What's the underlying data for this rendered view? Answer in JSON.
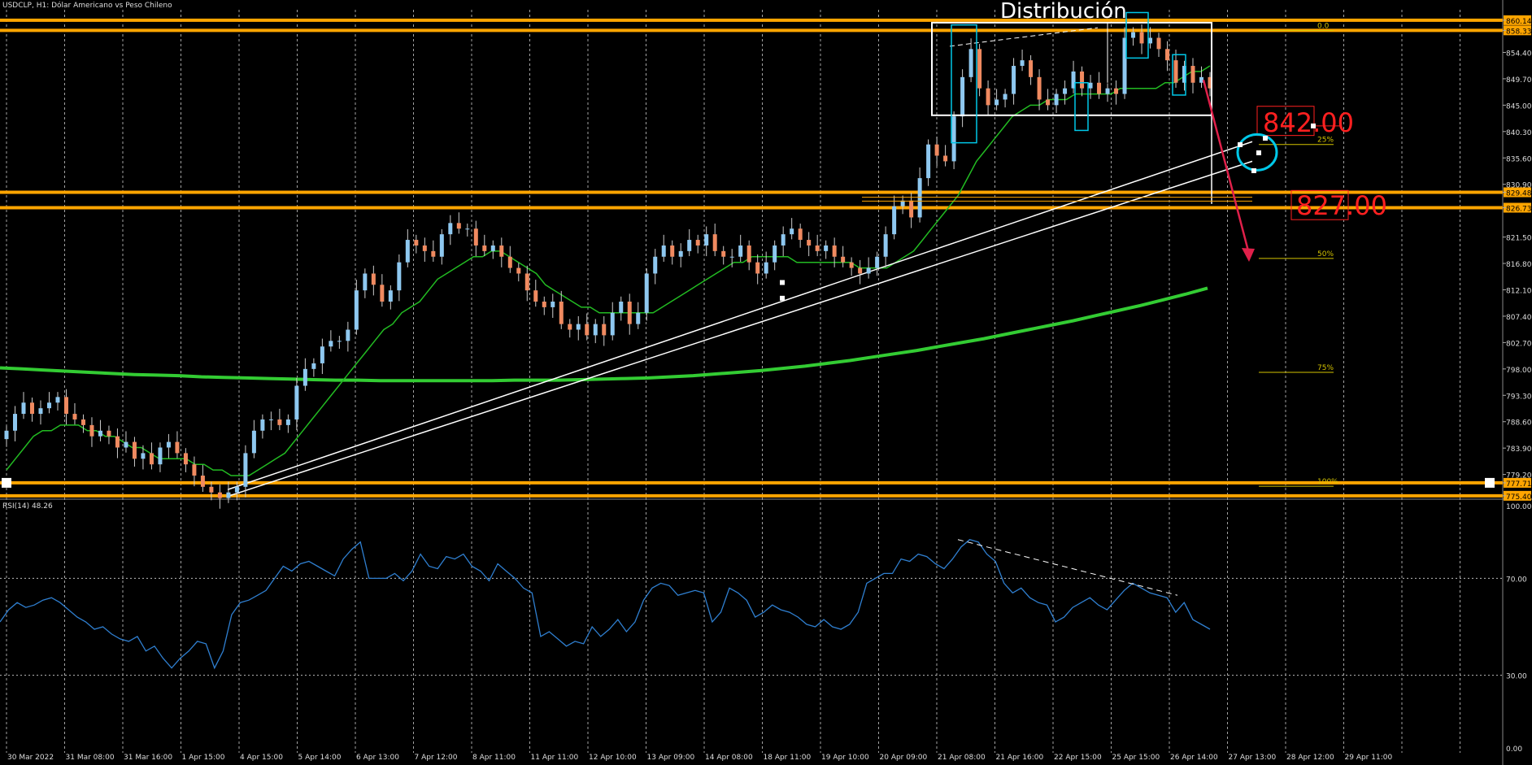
{
  "header": {
    "symbol": "USDCLP",
    "timeframe": "H1",
    "description": "Dólar Americano vs Peso Chileno"
  },
  "colors": {
    "background": "#000000",
    "grid": "#d8d8d8",
    "up_candle": "#8ec8f0",
    "down_candle": "#f08a60",
    "ma_fast": "#22bb22",
    "ma_slow": "#33cc33",
    "levels": "#ffa500",
    "fib": "#d4c300",
    "rsi": "#2f7fd0",
    "arrow": "#e0204a",
    "box": "#ffffff",
    "accent": "#00c8e8",
    "label_red": "#ff2020"
  },
  "chart_data": [
    {
      "type": "candlestick",
      "title": "USDCLP, H1",
      "ylim": [
        774.8,
        862.0
      ],
      "price_ticks": [
        "860.14",
        "858.33",
        "854.40",
        "849.70",
        "845.00",
        "840.30",
        "835.60",
        "830.90",
        "829.48",
        "826.73",
        "821.50",
        "816.80",
        "812.10",
        "807.40",
        "802.70",
        "798.00",
        "793.30",
        "788.60",
        "783.90",
        "779.20",
        "777.71",
        "775.40"
      ],
      "highlighted_ticks": [
        "860.14",
        "858.33",
        "829.48",
        "826.73",
        "777.71",
        "775.40"
      ],
      "x_labels": [
        "30 Mar 2022",
        "31 Mar 08:00",
        "31 Mar 16:00",
        "1 Apr 15:00",
        "4 Apr 15:00",
        "5 Apr 14:00",
        "6 Apr 13:00",
        "7 Apr 12:00",
        "8 Apr 11:00",
        "11 Apr 11:00",
        "12 Apr 10:00",
        "13 Apr 09:00",
        "14 Apr 08:00",
        "18 Apr 11:00",
        "19 Apr 10:00",
        "20 Apr 09:00",
        "21 Apr 08:00",
        "21 Apr 16:00",
        "22 Apr 15:00",
        "25 Apr 15:00",
        "26 Apr 14:00",
        "27 Apr 13:00",
        "28 Apr 12:00",
        "29 Apr 11:00"
      ],
      "horizontal_levels": [
        860.14,
        858.33,
        829.48,
        826.73,
        777.71,
        775.4
      ],
      "price_closes": [
        787,
        790,
        792,
        790,
        791,
        792,
        793,
        790,
        789,
        788,
        786,
        787,
        786,
        784,
        785,
        782,
        783,
        781,
        784,
        785,
        783,
        781,
        779,
        777,
        776,
        775,
        776,
        777,
        783,
        787,
        789,
        789,
        788,
        789,
        795,
        798,
        799,
        802,
        803,
        803,
        805,
        812,
        815,
        813,
        810,
        812,
        817,
        821,
        820,
        819,
        818,
        822,
        824,
        823,
        823,
        820,
        819,
        820,
        818,
        816,
        815,
        812,
        810,
        809,
        810,
        806,
        805,
        806,
        804,
        806,
        804,
        808,
        810,
        806,
        808,
        815,
        818,
        820,
        818,
        819,
        821,
        820,
        822,
        819,
        818,
        818,
        820,
        817,
        815,
        817,
        820,
        822,
        823,
        821,
        820,
        819,
        820,
        818,
        817,
        816,
        815,
        816,
        818,
        822,
        827,
        828,
        825,
        832,
        838,
        836,
        835,
        843,
        850,
        855,
        848,
        845,
        846,
        847,
        852,
        853,
        850,
        846,
        845,
        847,
        848,
        851,
        848,
        849,
        847,
        848,
        847,
        857,
        858,
        856,
        857,
        855,
        853,
        849,
        852,
        849,
        850,
        848
      ],
      "ma_fast": [
        780,
        782,
        784,
        786,
        787,
        787,
        788,
        788,
        788,
        787,
        787,
        786,
        786,
        785,
        784,
        784,
        783,
        782,
        782,
        782,
        782,
        781,
        781,
        780,
        780,
        779,
        779,
        779,
        780,
        781,
        782,
        783,
        785,
        787,
        789,
        791,
        793,
        795,
        797,
        799,
        801,
        803,
        805,
        806,
        808,
        809,
        810,
        812,
        814,
        815,
        816,
        817,
        818,
        818,
        819,
        819,
        818,
        817,
        816,
        815,
        813,
        812,
        811,
        810,
        809,
        809,
        808,
        808,
        808,
        808,
        808,
        808,
        808,
        809,
        810,
        811,
        812,
        813,
        814,
        815,
        816,
        817,
        817,
        818,
        818,
        818,
        818,
        818,
        817,
        817,
        817,
        817,
        817,
        817,
        817,
        816,
        816,
        816,
        816,
        817,
        818,
        819,
        821,
        823,
        825,
        827,
        829,
        832,
        835,
        837,
        839,
        841,
        843,
        844,
        845,
        845,
        846,
        846,
        846,
        847,
        847,
        847,
        847,
        847,
        848,
        848,
        848,
        848,
        848,
        849,
        849,
        850,
        851,
        851,
        852
      ],
      "ma_slow": [
        798.2,
        798.0,
        797.8,
        797.6,
        797.4,
        797.2,
        797.0,
        796.9,
        796.8,
        796.6,
        796.5,
        796.4,
        796.3,
        796.2,
        796.1,
        796.0,
        796.0,
        795.9,
        795.9,
        795.9,
        795.9,
        795.9,
        795.9,
        796.0,
        796.0,
        796.0,
        796.1,
        796.2,
        796.3,
        796.4,
        796.6,
        796.8,
        797.1,
        797.4,
        797.7,
        798.1,
        798.5,
        799.0,
        799.5,
        800.1,
        800.7,
        801.3,
        802.0,
        802.7,
        803.4,
        804.2,
        805.0,
        805.8,
        806.6,
        807.5,
        808.4,
        809.3,
        810.3,
        811.3,
        812.4
      ],
      "fib_levels": [
        {
          "label": "0.0",
          "price": 858.3
        },
        {
          "label": "25%",
          "price": 838.0
        },
        {
          "label": "50%",
          "price": 817.7
        },
        {
          "label": "75%",
          "price": 797.4
        },
        {
          "label": "100%",
          "price": 777.1
        }
      ],
      "annotations": [
        {
          "text": "Distribución",
          "kind": "title-label"
        },
        {
          "text": "842.00",
          "kind": "price-label",
          "price": 842.0
        },
        {
          "text": "827.00",
          "kind": "price-label",
          "price": 827.0
        }
      ]
    },
    {
      "type": "line",
      "title": "RSI(14) 48.26",
      "name": "RSI(14)",
      "ylim": [
        0,
        100
      ],
      "ticks": [
        "100.00",
        "70.00",
        "30.00",
        "0.00"
      ],
      "levels": [
        70,
        30
      ],
      "values": [
        52,
        57,
        60,
        58,
        59,
        61,
        62,
        60,
        57,
        54,
        52,
        49,
        50,
        47,
        45,
        44,
        46,
        40,
        42,
        37,
        33,
        37,
        40,
        44,
        43,
        33,
        40,
        55,
        60,
        61,
        63,
        65,
        70,
        75,
        73,
        76,
        77,
        75,
        73,
        71,
        78,
        82,
        85,
        70,
        70,
        70,
        72,
        69,
        73,
        80,
        75,
        74,
        79,
        78,
        80,
        75,
        73,
        69,
        76,
        73,
        70,
        66,
        64,
        46,
        48,
        45,
        42,
        44,
        43,
        50,
        46,
        49,
        53,
        48,
        52,
        61,
        66,
        68,
        67,
        63,
        64,
        65,
        64,
        52,
        56,
        66,
        64,
        61,
        54,
        56,
        59,
        57,
        56,
        54,
        51,
        50,
        53,
        50,
        49,
        51,
        56,
        68,
        70,
        72,
        72,
        78,
        77,
        80,
        79,
        76,
        74,
        78,
        83,
        86,
        85,
        80,
        77,
        68,
        64,
        66,
        62,
        60,
        59,
        52,
        54,
        58,
        60,
        62,
        59,
        57,
        61,
        65,
        68,
        66,
        64,
        63,
        62,
        56,
        60,
        53,
        51,
        49
      ]
    }
  ]
}
